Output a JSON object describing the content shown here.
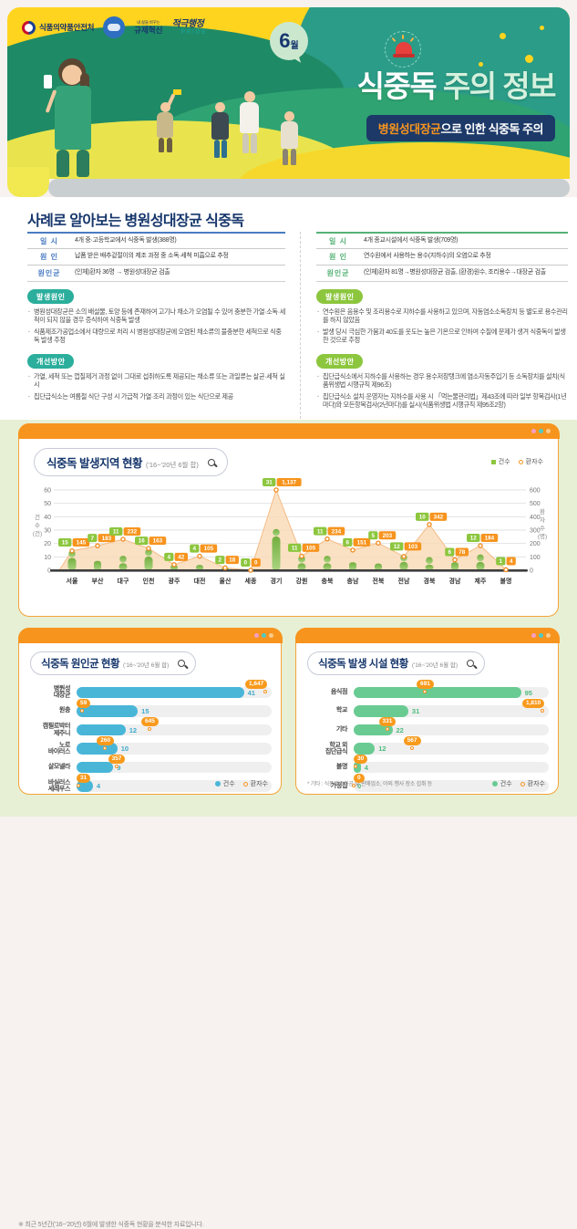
{
  "header": {
    "agency": "식품의약품안전처",
    "regulation_badge_top": "내 삶을 바꾸는",
    "regulation_badge": "규제혁신",
    "pride_badge_top": "적극행정",
    "pride_badge": "PRIDE",
    "month": "6",
    "month_suffix": "월",
    "title_part1": "식중독",
    "title_part2": " 주의 정보",
    "banner_highlight": "병원성대장균",
    "banner_rest": "으로 인한 식중독 주의"
  },
  "case_section": {
    "title": "사례로 알아보는 병원성대장균 식중독",
    "columns": [
      {
        "accent": "#4a7cc2",
        "badge_color": "#2bae9c",
        "table": [
          {
            "label": "일  시",
            "value": "4개 중·고등학교에서 식중독 발생(388명)"
          },
          {
            "label": "원  인",
            "value": "납품 받은 배추겉절이의 제조 과정 중 소독·세척 미흡으로 추정"
          },
          {
            "label": "원인균",
            "value": "(인체)환자 36명 → 병원성대장균 검출"
          }
        ],
        "cause_title": "발생원인",
        "cause_items": [
          "병원성대장균은 소의 배설물, 토양 등에 존재하여 고기나 채소가 오염될 수 있어 충분한 가열·소독·세척이 되지 않을 경우 증식하여 식중독 발생",
          "식품제조가공업소에서 대량으로 처리 시 병원성대장균에 오염된 채소류의 불충분한 세척으로 식중독 발생 추정"
        ],
        "improve_title": "개선방안",
        "improve_items": [
          "가열, 세척 또는 껍질제거 과정 없이 그대로 섭취하도록 제공되는 채소류 또는 과일류는 살균·세척 실시",
          "집단급식소는 여름철 식단 구성 시 가급적 가열·조리 과정이 있는 식단으로 제공"
        ]
      },
      {
        "accent": "#55b276",
        "badge_color": "#8cc63e",
        "table": [
          {
            "label": "일  시",
            "value": "4개 종교시설에서 식중독 발생(709명)"
          },
          {
            "label": "원  인",
            "value": "연수원에서 사용하는 용수(지하수)의 오염으로 추정"
          },
          {
            "label": "원인균",
            "value": "(인체)환자 81명→병원성대장균 검출, (환경)원수, 조리용수→대장균 검출"
          }
        ],
        "cause_title": "발생원인",
        "cause_items": [
          "연수원은 음용수 및 조리용수로 지하수를 사용하고 있으며, 자동염소소독장치 등 별도로 용수관리를 하지 않았음",
          "발생 당시 극심한 가뭄과 40도를 웃도는 높은 기온으로 인하여 수질에 문제가 생겨 식중독이 발생한 것으로 추정"
        ],
        "improve_title": "개선방안",
        "improve_items": [
          "집단급식소에서 지하수를 사용하는 경우 용수저장탱크에 염소자동주입기 등 소독장치를 설치(식품위생법 시행규칙 제96조)",
          "집단급식소 설치·운영자는 지하수를 사용 시 「먹는물관리법」제43조에 따라 일부 항목검사(1년마다)와 모든항목검사(2년마다)를 실시(식품위생법 시행규칙 제95조2항)"
        ]
      }
    ]
  },
  "chart_data": [
    {
      "type": "combo-bar-area",
      "title": "식중독 발생지역 현황",
      "subtitle": "('16~'20년 6월 합)",
      "legend": [
        "건수",
        "환자수"
      ],
      "categories": [
        "서울",
        "부산",
        "대구",
        "인천",
        "광주",
        "대전",
        "울산",
        "세종",
        "경기",
        "강원",
        "충북",
        "충남",
        "전북",
        "전남",
        "경북",
        "경남",
        "제주",
        "불명"
      ],
      "series": [
        {
          "name": "건수",
          "values": [
            15,
            7,
            11,
            16,
            4,
            4,
            2,
            0,
            31,
            11,
            11,
            6,
            5,
            12,
            10,
            6,
            12,
            1
          ]
        },
        {
          "name": "환자수",
          "values": [
            145,
            183,
            232,
            163,
            42,
            105,
            18,
            0,
            1137,
            105,
            234,
            151,
            203,
            103,
            342,
            78,
            184,
            4
          ]
        }
      ],
      "left_axis": {
        "label": "건수(건)",
        "ticks": [
          0,
          10,
          20,
          30,
          40,
          50,
          60
        ],
        "max": 60
      },
      "right_axis": {
        "label": "환자수(명)",
        "ticks": [
          0,
          100,
          200,
          300,
          400,
          500,
          600
        ],
        "max": 600
      },
      "colors": {
        "bar": "#85bc45",
        "area": "#fad9b5",
        "marker": "#f08a1d",
        "label_count": "#8cc63e",
        "label_patient": "#f7941e"
      }
    },
    {
      "type": "bar",
      "title": "식중독 원인균 현황",
      "subtitle": "('16~'20년 6월 합)",
      "legend": [
        "건수",
        "환자수"
      ],
      "categories": [
        "병원성\n대장균",
        "원충",
        "캠필로박터\n제주니",
        "노로\n바이러스",
        "살모넬라",
        "바실러스\n세레우스"
      ],
      "series": [
        {
          "name": "건수",
          "values": [
            41,
            15,
            12,
            10,
            9,
            4
          ]
        },
        {
          "name": "환자수",
          "values": [
            1647,
            59,
            645,
            260,
            357,
            31
          ]
        }
      ],
      "colors": {
        "bar": "#49b6d8",
        "value": "#3fa9cc",
        "badge": "#f89a1c"
      }
    },
    {
      "type": "bar",
      "title": "식중독 발생 시설 현황",
      "subtitle": "('16~'20년 6월 합)",
      "legend": [
        "건수",
        "환자수"
      ],
      "categories": [
        "음식점",
        "학교",
        "기타",
        "학교 외\n집단급식",
        "불명",
        "가정집"
      ],
      "series": [
        {
          "name": "건수",
          "values": [
            95,
            31,
            22,
            12,
            4,
            0
          ]
        },
        {
          "name": "환자수",
          "values": [
            691,
            1810,
            331,
            567,
            30,
            0
          ]
        }
      ],
      "footnote": "* 기타 : 식품제조가공 및 판매업소, 야외·행사 장소 섭취 등",
      "colors": {
        "bar": "#69cb92",
        "value": "#4dbb7e",
        "badge": "#f89a1c"
      }
    }
  ],
  "page": {
    "footnote": "※ 최근 5년간('16~'20년) 6월에 발생한 식중독 현황을 분석한 자료입니다."
  }
}
